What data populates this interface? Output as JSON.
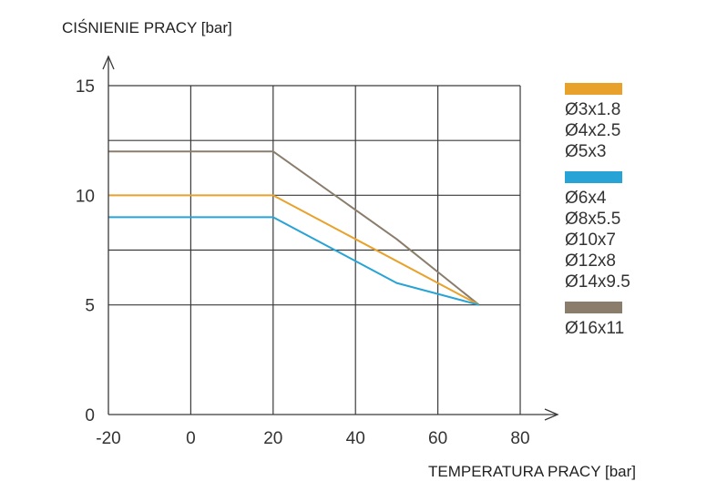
{
  "chart_data": {
    "type": "line",
    "title": "",
    "ylabel": "CIŚNIENIE PRACY [bar]",
    "xlabel": "TEMPERATURA PRACY [bar]",
    "xlim": [
      -20,
      80
    ],
    "ylim": [
      0,
      15
    ],
    "x_ticks": [
      -20,
      0,
      20,
      40,
      60,
      80
    ],
    "y_ticks": [
      0,
      5,
      10,
      15
    ],
    "x_tick_labels": [
      "-20",
      "0",
      "20",
      "40",
      "60",
      "80"
    ],
    "y_tick_labels": [
      "0",
      "5",
      "10",
      "15"
    ],
    "x_gridlines": [
      0,
      20,
      40,
      60,
      80
    ],
    "y_gridlines": [
      5,
      7.5,
      10,
      12.5,
      15
    ],
    "grid": true,
    "legend_position": "right",
    "series": [
      {
        "color": "#8b7d6b",
        "points": [
          [
            -20,
            12
          ],
          [
            20,
            12
          ],
          [
            50,
            8
          ],
          [
            70,
            5
          ]
        ],
        "legend_labels": [
          "Ø16x11"
        ]
      },
      {
        "color": "#e8a22c",
        "points": [
          [
            -20,
            10
          ],
          [
            20,
            10
          ],
          [
            70,
            5
          ]
        ],
        "legend_labels": [
          "Ø3x1.8",
          "Ø4x2.5",
          "Ø5x3"
        ]
      },
      {
        "color": "#27a3d6",
        "points": [
          [
            -20,
            9
          ],
          [
            20,
            9
          ],
          [
            50,
            6
          ],
          [
            70,
            5
          ]
        ],
        "legend_labels": [
          "Ø6x4",
          "Ø8x5.5",
          "Ø10x7",
          "Ø12x8",
          "Ø14x9.5"
        ]
      }
    ],
    "legend_order": [
      1,
      2,
      0
    ]
  }
}
